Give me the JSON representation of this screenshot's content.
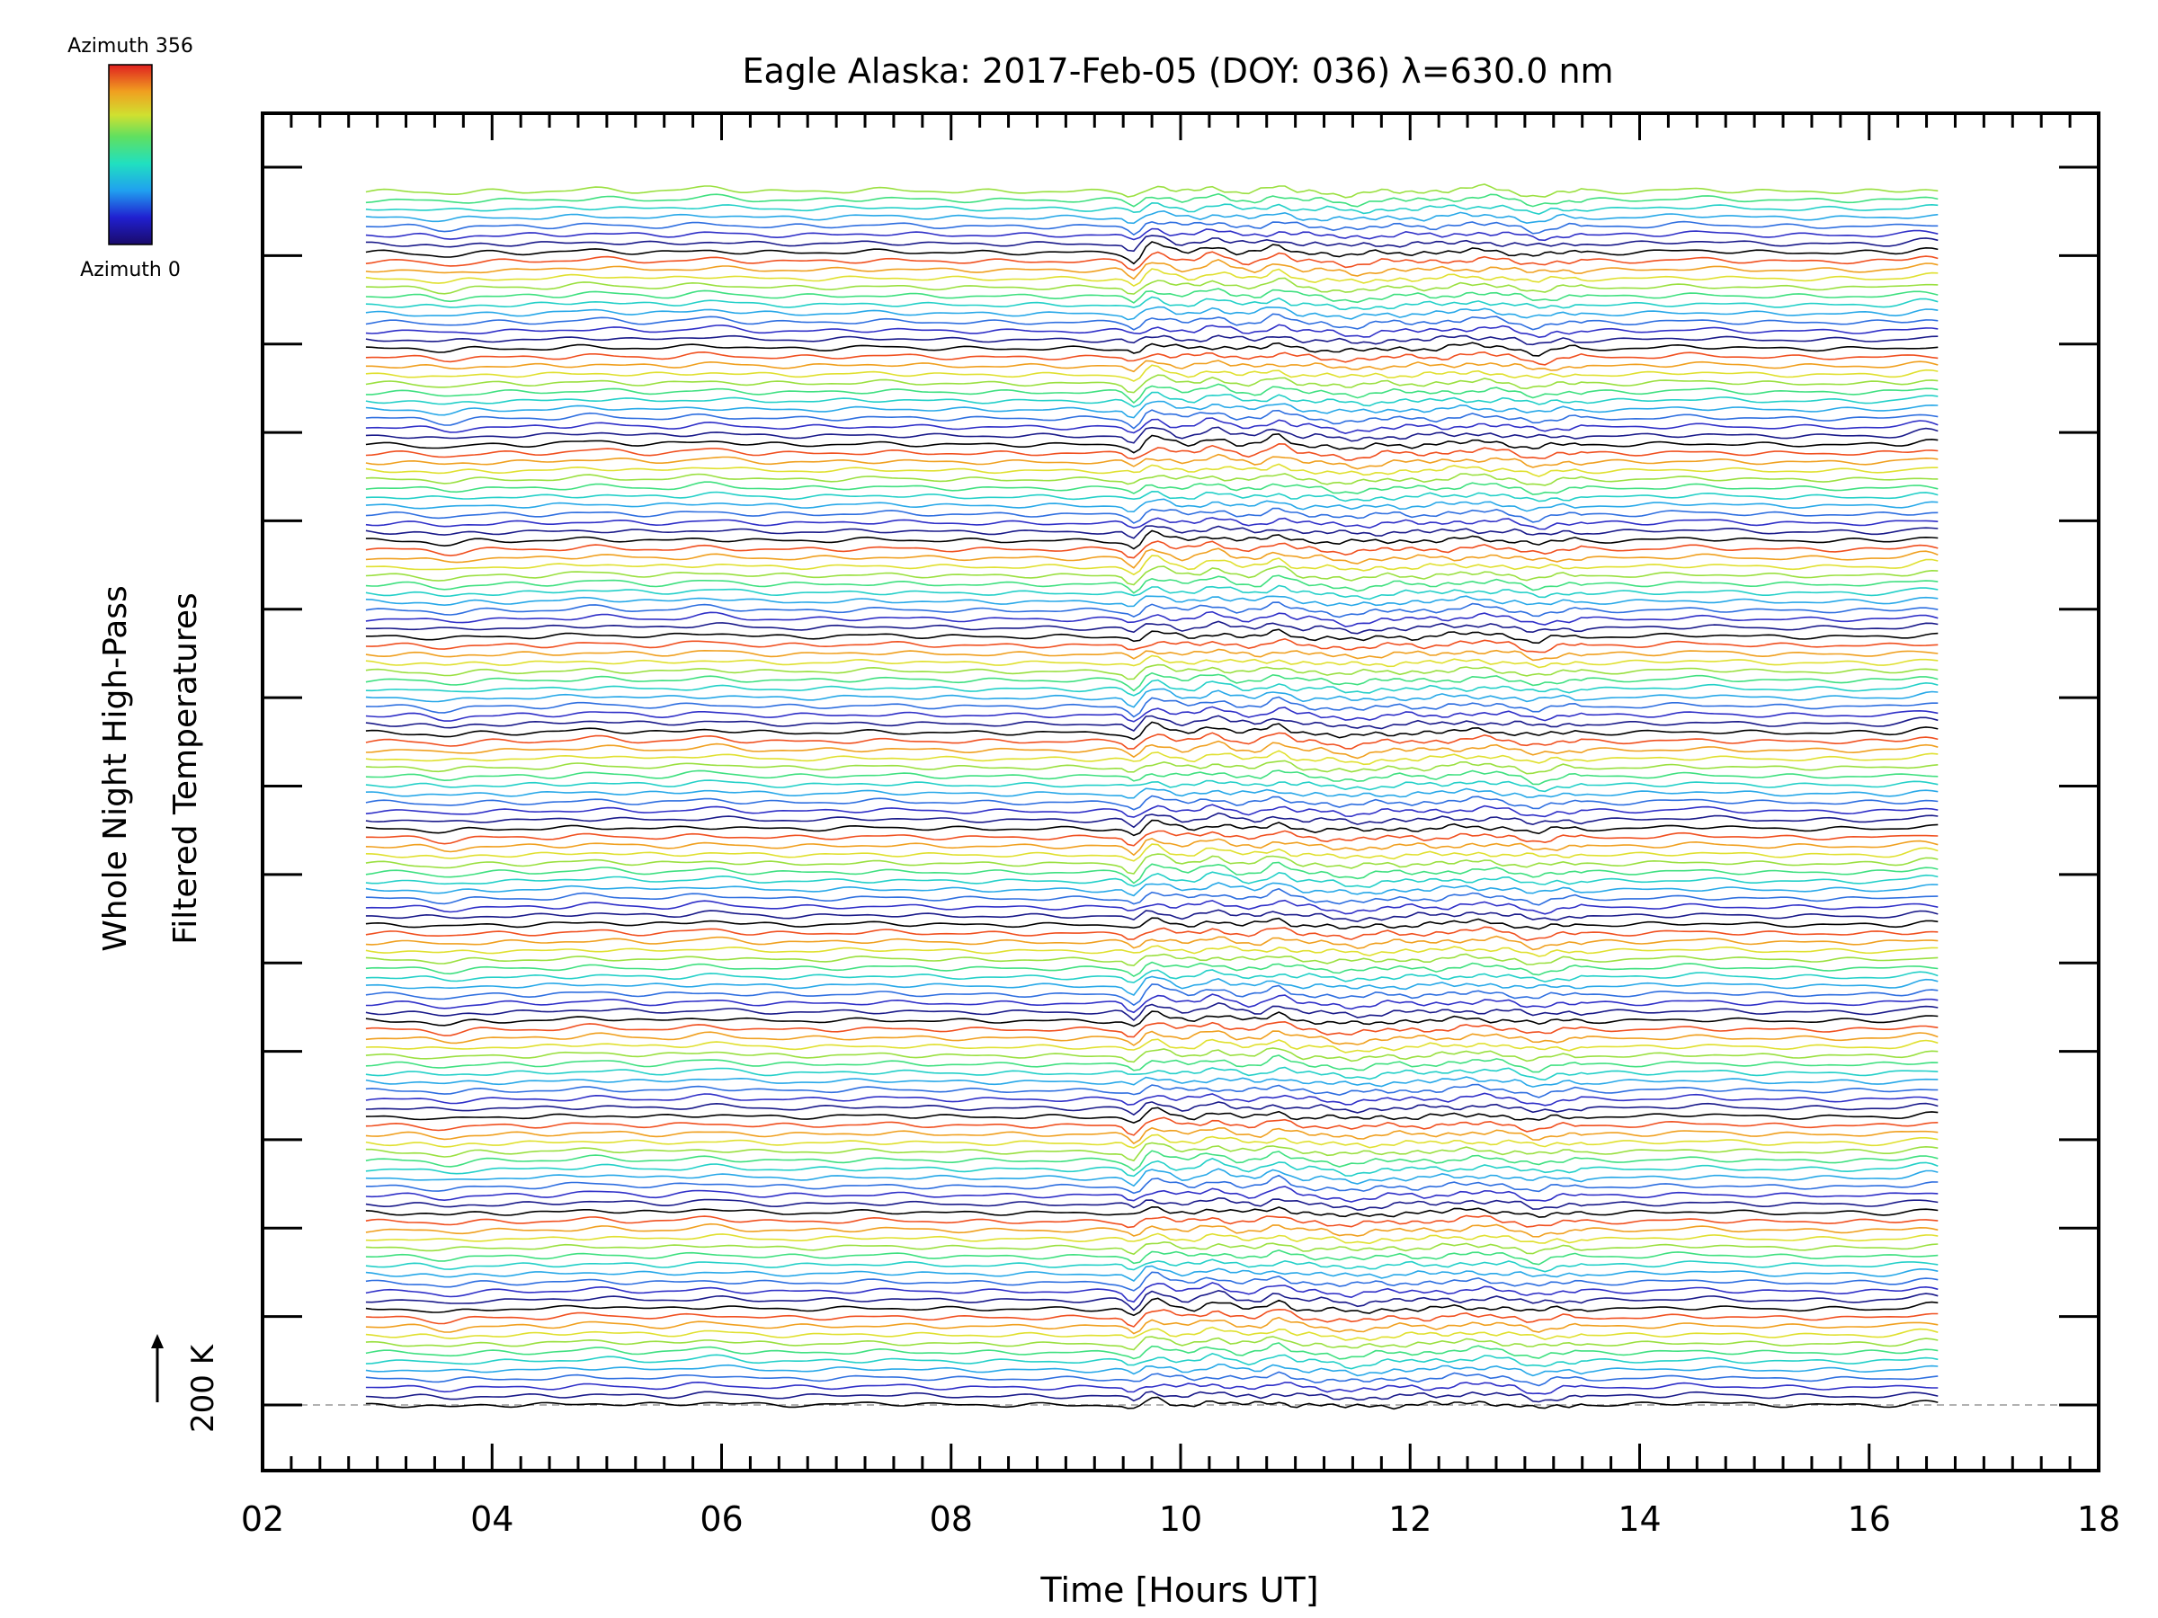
{
  "chart_data": {
    "type": "line",
    "title": "Eagle Alaska: 2017-Feb-05 (DOY: 036) λ=630.0 nm",
    "xlabel": "Time [Hours UT]",
    "ylabel_line1": "Whole Night High-Pass",
    "ylabel_line2": "Filtered Temperatures",
    "scale_label": "200 K",
    "xlim": [
      2,
      18
    ],
    "x_ticks": [
      "02",
      "04",
      "06",
      "08",
      "10",
      "12",
      "14",
      "16",
      "18"
    ],
    "x_range": [
      2.9,
      16.6
    ],
    "series_count": 140,
    "grid": false,
    "legend": {
      "type": "colorbar",
      "placement": "top-left",
      "label_max": "Azimuth 356",
      "label_min": "Azimuth 0"
    },
    "colors": {
      "azimuth_cycle": [
        "#000000",
        "#1a1a8a",
        "#3030c8",
        "#2f6fe0",
        "#28a8e8",
        "#24d0c8",
        "#40e080",
        "#9ae040",
        "#e0e030",
        "#f0a020",
        "#f05020"
      ]
    }
  }
}
